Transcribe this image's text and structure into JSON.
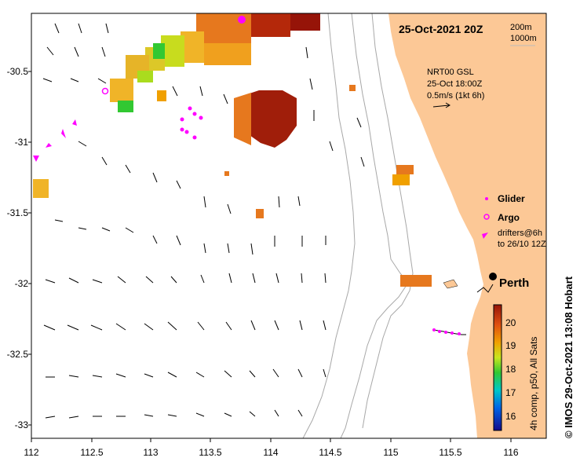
{
  "map": {
    "title": "25-Oct-2021 20Z",
    "contour_legend": [
      "200m",
      "1000m"
    ],
    "current_info": [
      "NRT00 GSL",
      "25-Oct 18:00Z",
      "0.5m/s (1kt 6h)"
    ],
    "legend": {
      "glider": "Glider",
      "argo": "Argo",
      "drifters": [
        "drifters@6h",
        "to 26/10 12Z"
      ]
    },
    "city": "Perth",
    "colorbar": {
      "label": "4h comp, p50, All Sats",
      "ticks": [
        "20",
        "19",
        "18",
        "17",
        "16"
      ],
      "range": [
        15.5,
        20.7
      ]
    },
    "credit": "© IMOS 29-Oct-2021 13:08 Hobart",
    "x_ticks": [
      "112",
      "112.5",
      "113",
      "113.5",
      "114",
      "114.5",
      "115",
      "115.5",
      "116"
    ],
    "y_ticks": [
      "-30.5",
      "-31",
      "-31.5",
      "-32",
      "-32.5",
      "-33"
    ],
    "colors": {
      "land": "#fcc896",
      "warm": "#a01e0a",
      "arrow": "#000000",
      "argo": "#ff00ff"
    }
  }
}
